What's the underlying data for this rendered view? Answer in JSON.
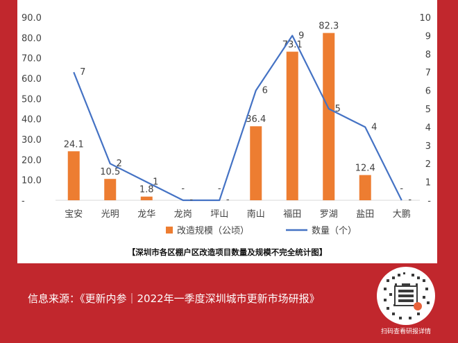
{
  "chart_data": {
    "type": "bar+line",
    "title": "",
    "categories": [
      "宝安",
      "光明",
      "龙华",
      "龙岗",
      "坪山",
      "南山",
      "福田",
      "罗湖",
      "盐田",
      "大鹏"
    ],
    "y_left": {
      "ylim": [
        0,
        90
      ],
      "ticks": [
        "-",
        "10.0",
        "20.0",
        "30.0",
        "40.0",
        "50.0",
        "60.0",
        "70.0",
        "80.0",
        "90.0"
      ]
    },
    "y_right": {
      "ylim": [
        0,
        10
      ],
      "ticks": [
        "-",
        "1",
        "2",
        "3",
        "4",
        "5",
        "6",
        "7",
        "8",
        "9",
        "10"
      ]
    },
    "series": [
      {
        "name": "改造规模（公顷）",
        "kind": "bar",
        "axis": "left",
        "color": "#ed7d31",
        "values": [
          24.1,
          10.5,
          1.8,
          0,
          0,
          36.4,
          73.1,
          82.3,
          12.4,
          0
        ],
        "labels": [
          "24.1",
          "10.5",
          "1.8",
          "-",
          "-",
          "36.4",
          "73.1",
          "82.3",
          "12.4",
          "-"
        ]
      },
      {
        "name": "数量（个）",
        "kind": "line",
        "axis": "right",
        "color": "#4472c4",
        "values": [
          7,
          2,
          1,
          0,
          0,
          6,
          9,
          5,
          4,
          0
        ],
        "labels": [
          "7",
          "2",
          "1",
          "-",
          "-",
          "6",
          "9",
          "5",
          "4",
          "-"
        ]
      }
    ],
    "legend": "bottom",
    "grid": false
  },
  "caption": "【深圳市各区棚户区改造项目数量及规模不完全统计图】",
  "source": "信息来源：《更新内参｜2022年一季度深圳城市更新市场研报》",
  "qr": {
    "hint": "扫码查看研报详情",
    "accent": "#e8623a"
  }
}
